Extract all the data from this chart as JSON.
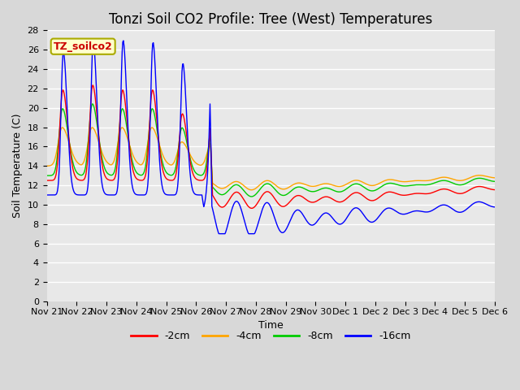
{
  "title": "Tonzi Soil CO2 Profile: Tree (West) Temperatures",
  "xlabel": "Time",
  "ylabel": "Soil Temperature (C)",
  "ylim": [
    0,
    28
  ],
  "yticks": [
    0,
    2,
    4,
    6,
    8,
    10,
    12,
    14,
    16,
    18,
    20,
    22,
    24,
    26,
    28
  ],
  "legend_label": "TZ_soilco2",
  "series_labels": [
    "-2cm",
    "-4cm",
    "-8cm",
    "-16cm"
  ],
  "series_colors": [
    "#ff0000",
    "#ffa500",
    "#00cc00",
    "#0000ff"
  ],
  "background_color": "#e0e0e0",
  "plot_bg_color": "#e8e8e8",
  "x_tick_labels": [
    "Nov 21",
    "Nov 22",
    "Nov 23",
    "Nov 24",
    "Nov 25",
    "Nov 26",
    "Nov 27",
    "Nov 28",
    "Nov 29",
    "Nov 30",
    "Dec 1",
    "Dec 2",
    "Dec 3",
    "Dec 4",
    "Dec 5",
    "Dec 6"
  ],
  "title_fontsize": 12,
  "axis_fontsize": 9,
  "tick_fontsize": 8
}
